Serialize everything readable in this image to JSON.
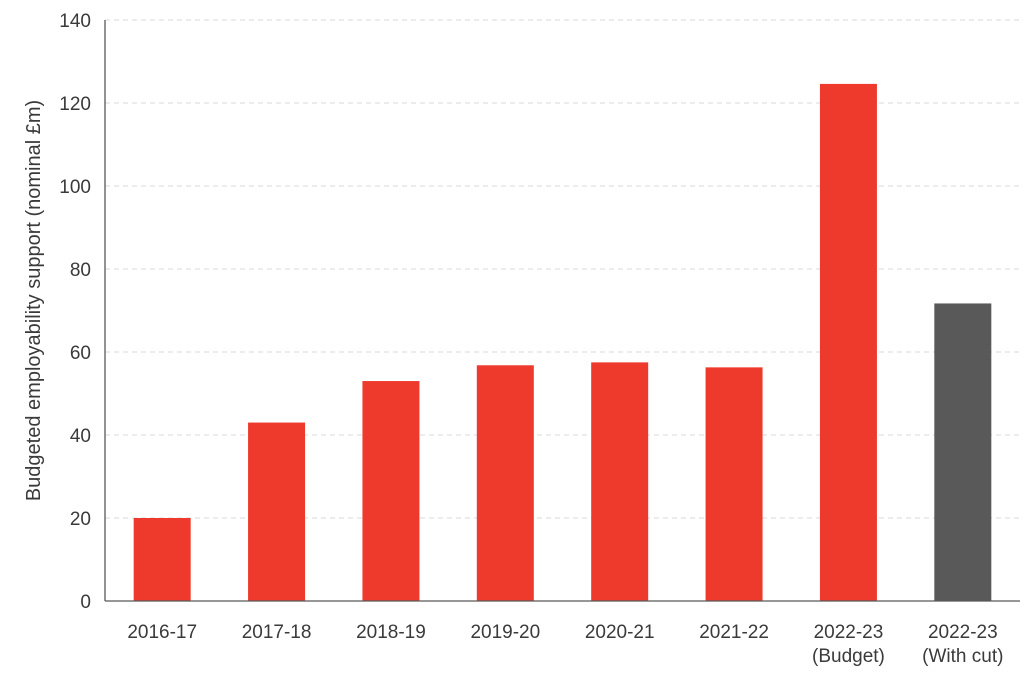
{
  "chart_data": {
    "type": "bar",
    "title": "",
    "xlabel": "",
    "ylabel": "Budgeted employability support (nominal £m)",
    "ylim": [
      0,
      140
    ],
    "yticks": [
      0,
      20,
      40,
      60,
      80,
      100,
      120,
      140
    ],
    "grid": true,
    "categories": [
      [
        "2016-17"
      ],
      [
        "2017-18"
      ],
      [
        "2018-19"
      ],
      [
        "2019-20"
      ],
      [
        "2020-21"
      ],
      [
        "2021-22"
      ],
      [
        "2022-23",
        "(Budget)"
      ],
      [
        "2022-23",
        "(With cut)"
      ]
    ],
    "values": [
      20,
      43,
      53,
      56.8,
      57.5,
      56.3,
      124.6,
      71.7
    ],
    "colors": [
      "#ee3a2c",
      "#ee3a2c",
      "#ee3a2c",
      "#ee3a2c",
      "#ee3a2c",
      "#ee3a2c",
      "#ee3a2c",
      "#595959"
    ]
  }
}
